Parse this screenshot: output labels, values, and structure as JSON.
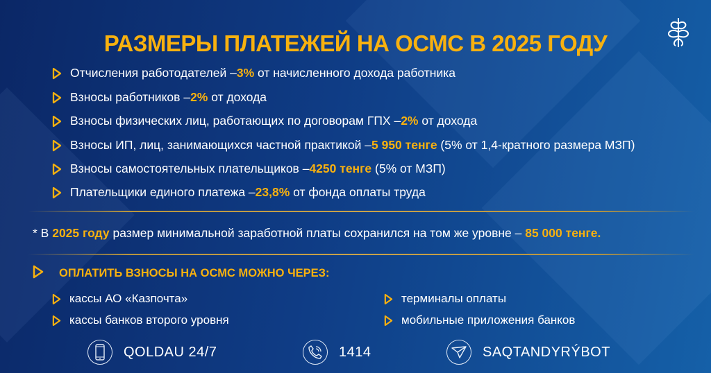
{
  "title": "РАЗМЕРЫ ПЛАТЕЖЕЙ НА ОСМС В 2025 ГОДУ",
  "colors": {
    "accent": "#f8b10f",
    "background": "#0f3c85"
  },
  "logo": {
    "icon": "snowflake-ornament-logo"
  },
  "items": [
    {
      "pre": "Отчисления работодателей – ",
      "hl": "3%",
      "post": " от начисленного дохода работника"
    },
    {
      "pre": "Взносы работников – ",
      "hl": "2%",
      "post": " от дохода"
    },
    {
      "pre": "Взносы физических лиц, работающих по договорам ГПХ – ",
      "hl": "2%",
      "post": " от дохода"
    },
    {
      "pre": "Взносы ИП, лиц, занимающихся частной практикой – ",
      "hl": "5 950 тенге",
      "post": " (5% от 1,4-кратного размера МЗП)"
    },
    {
      "pre": "Взносы самостоятельных плательщиков – ",
      "hl": "4250 тенге",
      "post": " (5% от МЗП)"
    },
    {
      "pre": "Плательщики единого платежа – ",
      "hl": "23,8%",
      "post": " от фонда оплаты труда"
    }
  ],
  "note": {
    "pre": "* В ",
    "hl": "2025 году",
    "mid": " размер минимальной заработной платы сохранился на том же уровне – ",
    "hl2": "85 000 тенге."
  },
  "payment": {
    "heading": "ОПЛАТИТЬ ВЗНОСЫ НА ОСМС МОЖНО ЧЕРЕЗ:",
    "options": [
      "кассы АО «Казпочта»",
      "кассы банков второго уровня",
      "терминалы оплаты",
      "мобильные приложения банков"
    ]
  },
  "footer": [
    {
      "icon": "smartphone-icon",
      "label": "QOLDAU 24/7"
    },
    {
      "icon": "phone-icon",
      "label": "1414"
    },
    {
      "icon": "paper-plane-icon",
      "label": "SAQTANDYRÝBOT"
    }
  ]
}
